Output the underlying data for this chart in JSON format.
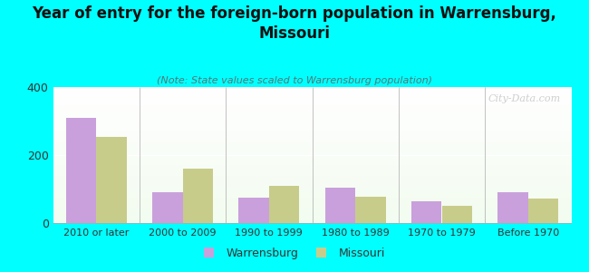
{
  "title": "Year of entry for the foreign-born population in Warrensburg,\nMissouri",
  "subtitle": "(Note: State values scaled to Warrensburg population)",
  "categories": [
    "2010 or later",
    "2000 to 2009",
    "1990 to 1999",
    "1980 to 1989",
    "1970 to 1979",
    "Before 1970"
  ],
  "warrensburg": [
    310,
    90,
    75,
    105,
    63,
    90
  ],
  "missouri": [
    253,
    160,
    110,
    78,
    50,
    73
  ],
  "warrensburg_color": "#c9a0dc",
  "missouri_color": "#c8cc8a",
  "background_color": "#00ffff",
  "ylim": [
    0,
    400
  ],
  "yticks": [
    0,
    200,
    400
  ],
  "bar_width": 0.35,
  "watermark": "City-Data.com",
  "legend_warrensburg": "Warrensburg",
  "legend_missouri": "Missouri",
  "title_fontsize": 12,
  "subtitle_fontsize": 8
}
